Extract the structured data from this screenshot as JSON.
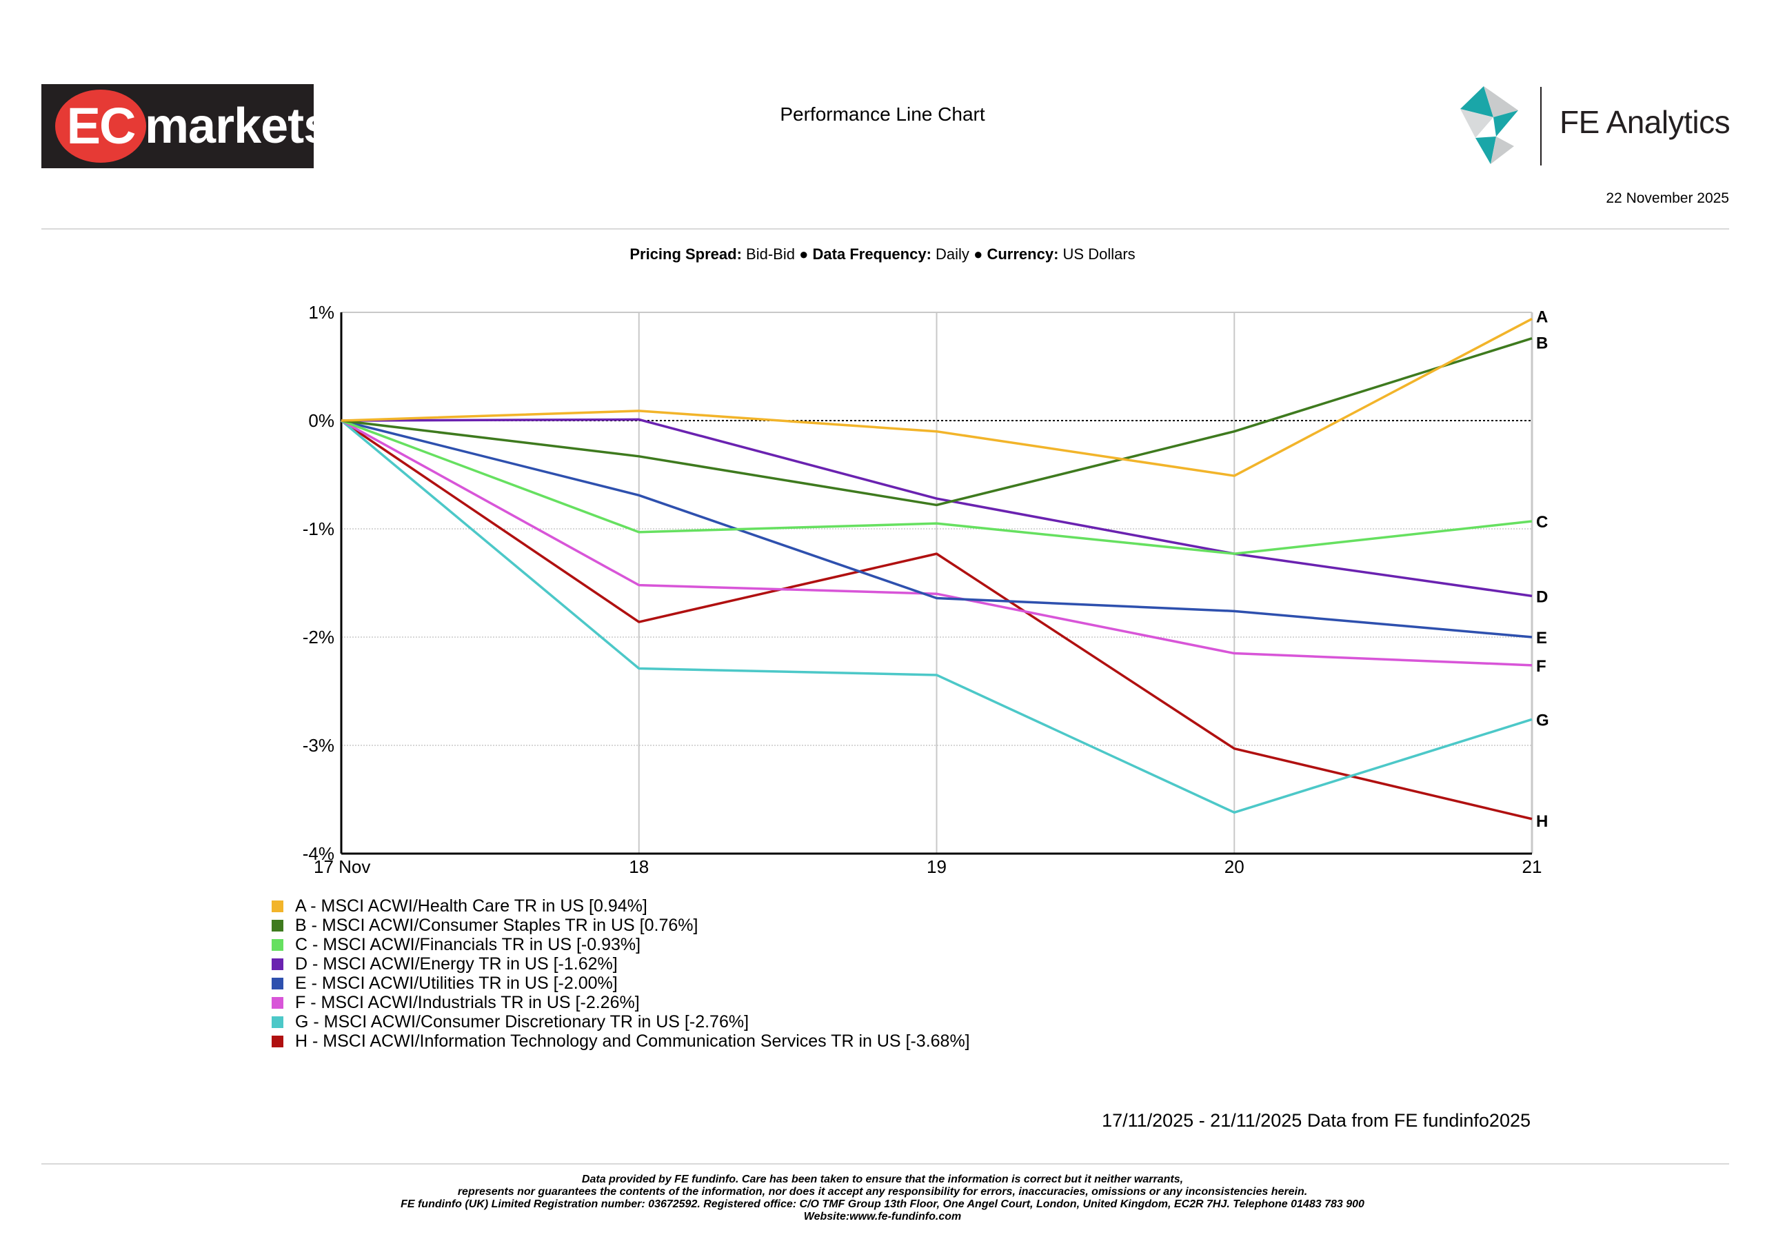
{
  "header": {
    "brand_logo_text": {
      "ec": "EC",
      "markets": "markets"
    },
    "title": "Performance Line Chart",
    "fe_brand": "FE Analytics",
    "date": "22 November 2025"
  },
  "settings_line": {
    "pricing_label": "Pricing Spread:",
    "pricing_value": "Bid-Bid",
    "frequency_label": "Data Frequency:",
    "frequency_value": "Daily",
    "currency_label": "Currency:",
    "currency_value": "US Dollars",
    "separator": "●"
  },
  "chart_data": {
    "type": "line",
    "title": "Performance Line Chart",
    "x": [
      "17 Nov",
      "18",
      "19",
      "20",
      "21"
    ],
    "ylim": [
      -4,
      1
    ],
    "yticks": [
      1,
      0,
      -1,
      -2,
      -3,
      -4
    ],
    "ytick_labels": [
      "1%",
      "0%",
      "-1%",
      "-2%",
      "-3%",
      "-4%"
    ],
    "xlabel": "",
    "ylabel": "",
    "grid": true,
    "series": [
      {
        "id": "A",
        "name": "A - MSCI ACWI/Health Care TR in US [0.94%]",
        "color": "#F2B42A",
        "values": [
          0,
          0.09,
          -0.1,
          -0.51,
          0.94
        ]
      },
      {
        "id": "B",
        "name": "B - MSCI ACWI/Consumer Staples TR in US [0.76%]",
        "color": "#3E7A1E",
        "values": [
          0,
          -0.33,
          -0.78,
          -0.1,
          0.76
        ]
      },
      {
        "id": "C",
        "name": "C - MSCI ACWI/Financials TR in US [-0.93%]",
        "color": "#66E060",
        "values": [
          0,
          -1.03,
          -0.95,
          -1.23,
          -0.93
        ]
      },
      {
        "id": "D",
        "name": "D - MSCI ACWI/Energy TR in US [-1.62%]",
        "color": "#6A22B0",
        "values": [
          0,
          0.01,
          -0.72,
          -1.23,
          -1.62
        ]
      },
      {
        "id": "E",
        "name": "E - MSCI ACWI/Utilities TR in US [-2.00%]",
        "color": "#2E50AE",
        "values": [
          0,
          -0.69,
          -1.64,
          -1.76,
          -2.0
        ]
      },
      {
        "id": "F",
        "name": "F - MSCI ACWI/Industrials TR in US [-2.26%]",
        "color": "#D855D8",
        "values": [
          0,
          -1.52,
          -1.6,
          -2.15,
          -2.26
        ]
      },
      {
        "id": "G",
        "name": "G - MSCI ACWI/Consumer Discretionary TR in US [-2.76%]",
        "color": "#4CC8C8",
        "values": [
          0,
          -2.29,
          -2.35,
          -3.62,
          -2.76
        ]
      },
      {
        "id": "H",
        "name": "H - MSCI ACWI/Information Technology and Communication Services TR in US [-3.68%]",
        "color": "#B01010",
        "values": [
          0,
          -1.86,
          -1.23,
          -3.03,
          -3.68
        ]
      }
    ]
  },
  "data_source": "17/11/2025 - 21/11/2025 Data from FE fundinfo2025",
  "disclaimer": [
    "Data provided by FE fundinfo. Care has been taken to ensure that the information is correct but it neither warrants,",
    "represents nor guarantees the contents of the information, nor does it accept any responsibility for errors, inaccuracies, omissions or any inconsistencies herein.",
    "FE fundinfo (UK) Limited Registration number: 03672592. Registered office: C/O TMF Group 13th Floor, One Angel Court, London, United Kingdom, EC2R 7HJ. Telephone 01483 783 900",
    "Website:www.fe-fundinfo.com"
  ],
  "colors": {
    "grid": "#c8c8c8",
    "axis": "#000000",
    "zero_line": "#000000"
  }
}
